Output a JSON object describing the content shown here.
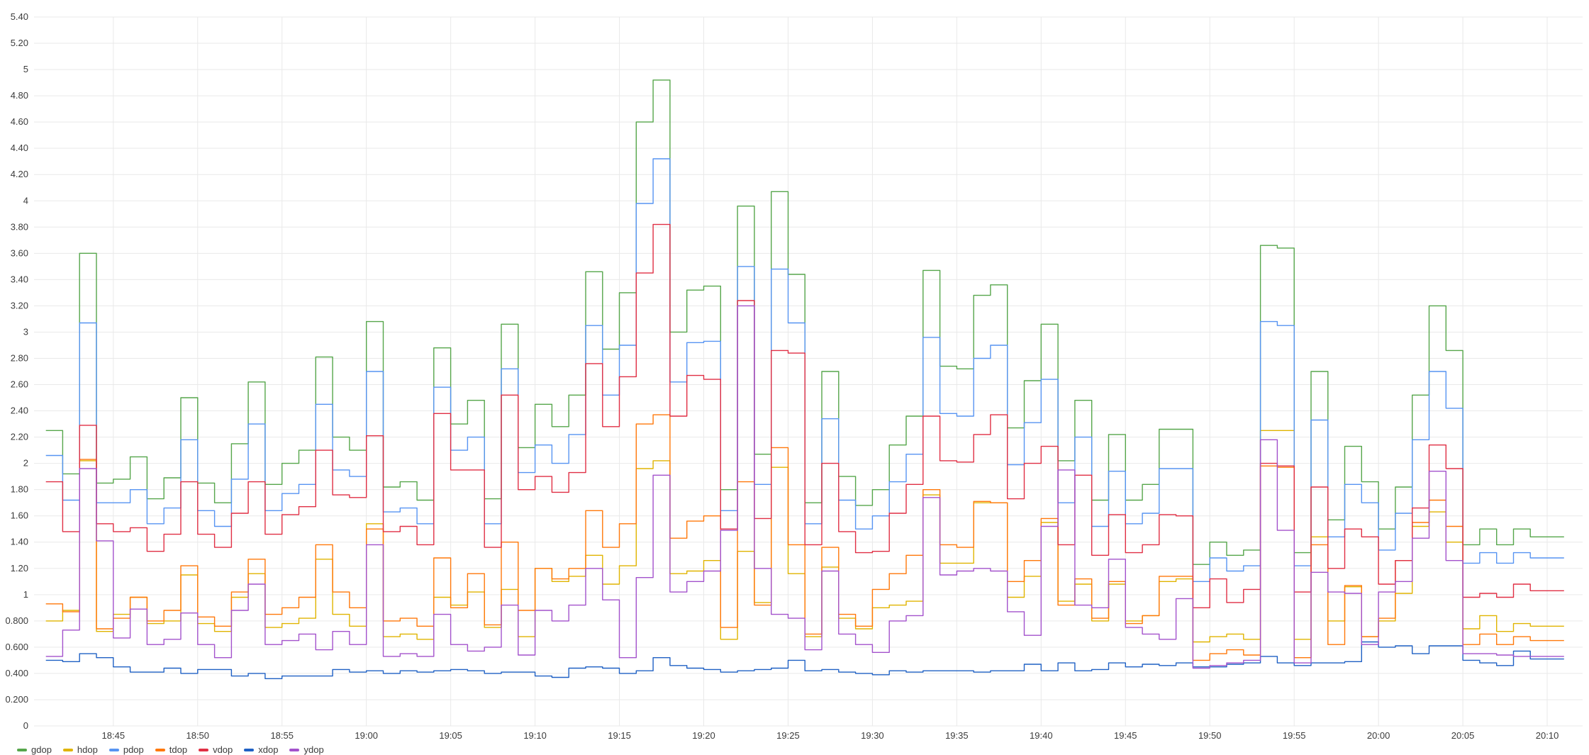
{
  "chart_data": {
    "type": "line",
    "title": "",
    "xlabel": "",
    "ylabel": "",
    "ylim": [
      0,
      5.4
    ],
    "y_ticks": [
      "0",
      "0.200",
      "0.400",
      "0.600",
      "0.800",
      "1",
      "1.20",
      "1.40",
      "1.60",
      "1.80",
      "2",
      "2.20",
      "2.40",
      "2.60",
      "2.80",
      "3",
      "3.20",
      "3.40",
      "3.60",
      "3.80",
      "4",
      "4.20",
      "4.40",
      "4.60",
      "4.80",
      "5",
      "5.20",
      "5.40"
    ],
    "x_ticks": [
      "18:45",
      "18:50",
      "18:55",
      "19:00",
      "19:05",
      "19:10",
      "19:15",
      "19:20",
      "19:25",
      "19:30",
      "19:35",
      "19:40",
      "19:45",
      "19:50",
      "19:55",
      "20:00",
      "20:05",
      "20:10"
    ],
    "x_time": [
      "18:41",
      "18:42",
      "18:43",
      "18:44",
      "18:45",
      "18:46",
      "18:47",
      "18:48",
      "18:49",
      "18:50",
      "18:51",
      "18:52",
      "18:53",
      "18:54",
      "18:55",
      "18:56",
      "18:57",
      "18:58",
      "18:59",
      "19:00",
      "19:01",
      "19:02",
      "19:03",
      "19:04",
      "19:05",
      "19:06",
      "19:07",
      "19:08",
      "19:09",
      "19:10",
      "19:11",
      "19:12",
      "19:13",
      "19:14",
      "19:15",
      "19:16",
      "19:17",
      "19:18",
      "19:19",
      "19:20",
      "19:21",
      "19:22",
      "19:23",
      "19:24",
      "19:25",
      "19:26",
      "19:27",
      "19:28",
      "19:29",
      "19:30",
      "19:31",
      "19:32",
      "19:33",
      "19:34",
      "19:35",
      "19:36",
      "19:37",
      "19:38",
      "19:39",
      "19:40",
      "19:41",
      "19:42",
      "19:43",
      "19:44",
      "19:45",
      "19:46",
      "19:47",
      "19:48",
      "19:49",
      "19:50",
      "19:51",
      "19:52",
      "19:53",
      "19:54",
      "19:55",
      "19:56",
      "19:57",
      "19:58",
      "19:59",
      "20:00",
      "20:01",
      "20:02",
      "20:03",
      "20:04",
      "20:05",
      "20:06",
      "20:07",
      "20:08",
      "20:09",
      "20:10",
      "20:11"
    ],
    "grid": true,
    "legend_position": "bottom-left",
    "series": [
      {
        "name": "gdop",
        "color": "#56A64B",
        "values": [
          2.25,
          1.92,
          3.6,
          1.85,
          1.88,
          2.05,
          1.73,
          1.89,
          2.5,
          1.85,
          1.7,
          2.15,
          2.62,
          1.84,
          2.0,
          2.1,
          2.81,
          2.2,
          2.1,
          3.08,
          1.82,
          1.86,
          1.72,
          2.88,
          2.3,
          2.48,
          1.73,
          3.06,
          2.12,
          2.45,
          2.28,
          2.52,
          3.46,
          2.87,
          3.3,
          4.6,
          4.92,
          3.0,
          3.32,
          3.35,
          1.8,
          3.96,
          2.07,
          4.07,
          3.44,
          1.7,
          2.7,
          1.9,
          1.68,
          1.8,
          2.14,
          2.36,
          3.47,
          2.74,
          2.72,
          3.28,
          3.36,
          2.27,
          2.63,
          3.06,
          2.02,
          2.48,
          1.72,
          2.22,
          1.72,
          1.84,
          2.26,
          2.26,
          1.23,
          1.4,
          1.3,
          1.34,
          3.66,
          3.64,
          1.32,
          2.7,
          1.57,
          2.13,
          1.86,
          1.5,
          1.82,
          2.52,
          3.2,
          2.86,
          1.38,
          1.5,
          1.38,
          1.5,
          1.44,
          1.44
        ]
      },
      {
        "name": "hdop",
        "color": "#E0B400",
        "values": [
          0.8,
          0.88,
          2.02,
          0.72,
          0.85,
          0.98,
          0.78,
          0.8,
          1.15,
          0.78,
          0.72,
          0.98,
          1.16,
          0.75,
          0.78,
          0.82,
          1.27,
          0.85,
          0.76,
          1.54,
          0.68,
          0.7,
          0.66,
          0.98,
          0.92,
          1.02,
          0.75,
          1.04,
          0.68,
          1.2,
          1.1,
          1.14,
          1.3,
          1.08,
          1.22,
          1.96,
          2.02,
          1.16,
          1.18,
          1.26,
          0.66,
          1.33,
          0.94,
          1.97,
          1.16,
          0.68,
          1.21,
          0.82,
          0.74,
          0.9,
          0.92,
          0.95,
          1.76,
          1.24,
          1.24,
          1.7,
          1.7,
          0.98,
          1.14,
          1.55,
          0.95,
          1.08,
          0.8,
          1.08,
          0.8,
          0.84,
          1.1,
          1.12,
          0.64,
          0.68,
          0.7,
          0.66,
          2.25,
          2.25,
          0.66,
          1.44,
          0.8,
          1.06,
          0.68,
          0.8,
          1.01,
          1.52,
          1.63,
          1.4,
          0.74,
          0.84,
          0.72,
          0.78,
          0.76,
          0.76
        ]
      },
      {
        "name": "pdop",
        "color": "#5794F2",
        "values": [
          2.06,
          1.72,
          3.07,
          1.7,
          1.7,
          1.8,
          1.54,
          1.66,
          2.18,
          1.64,
          1.52,
          1.88,
          2.3,
          1.64,
          1.77,
          1.84,
          2.45,
          1.95,
          1.9,
          2.7,
          1.63,
          1.66,
          1.54,
          2.58,
          2.1,
          2.2,
          1.54,
          2.72,
          1.93,
          2.14,
          2.0,
          2.22,
          3.05,
          2.52,
          2.9,
          3.98,
          4.32,
          2.62,
          2.92,
          2.93,
          1.64,
          3.5,
          1.84,
          3.48,
          3.07,
          1.54,
          2.34,
          1.72,
          1.5,
          1.6,
          1.86,
          2.07,
          2.96,
          2.38,
          2.36,
          2.8,
          2.9,
          1.99,
          2.31,
          2.64,
          1.7,
          2.2,
          1.52,
          1.94,
          1.54,
          1.62,
          1.96,
          1.96,
          1.1,
          1.28,
          1.18,
          1.22,
          3.08,
          3.05,
          1.22,
          2.33,
          1.44,
          1.84,
          1.7,
          1.34,
          1.62,
          2.18,
          2.7,
          2.42,
          1.24,
          1.32,
          1.24,
          1.32,
          1.28,
          1.28
        ]
      },
      {
        "name": "tdop",
        "color": "#FF780A",
        "values": [
          0.93,
          0.87,
          2.03,
          0.74,
          0.82,
          0.98,
          0.8,
          0.88,
          1.22,
          0.83,
          0.76,
          1.02,
          1.27,
          0.85,
          0.9,
          0.98,
          1.38,
          1.02,
          0.9,
          1.5,
          0.8,
          0.82,
          0.76,
          1.28,
          0.9,
          1.16,
          0.77,
          1.4,
          0.88,
          1.2,
          1.12,
          1.2,
          1.64,
          1.36,
          1.54,
          2.3,
          2.37,
          1.43,
          1.56,
          1.6,
          0.75,
          1.86,
          0.92,
          2.12,
          1.38,
          0.7,
          1.36,
          0.85,
          0.76,
          1.04,
          1.16,
          1.3,
          1.8,
          1.38,
          1.36,
          1.71,
          1.7,
          1.1,
          1.26,
          1.58,
          0.92,
          1.12,
          0.82,
          1.1,
          0.78,
          0.84,
          1.14,
          1.14,
          0.5,
          0.55,
          0.58,
          0.54,
          1.98,
          1.97,
          0.52,
          1.38,
          0.62,
          1.07,
          0.68,
          0.82,
          1.26,
          1.55,
          1.72,
          1.52,
          0.62,
          0.7,
          0.62,
          0.68,
          0.65,
          0.65
        ]
      },
      {
        "name": "vdop",
        "color": "#E02F44",
        "values": [
          1.86,
          1.48,
          2.29,
          1.54,
          1.48,
          1.51,
          1.33,
          1.46,
          1.86,
          1.46,
          1.36,
          1.62,
          1.86,
          1.46,
          1.61,
          1.67,
          2.1,
          1.76,
          1.74,
          2.21,
          1.48,
          1.52,
          1.38,
          2.38,
          1.95,
          1.95,
          1.36,
          2.52,
          1.8,
          1.9,
          1.78,
          1.93,
          2.76,
          2.28,
          2.66,
          3.45,
          3.82,
          2.36,
          2.67,
          2.64,
          1.5,
          3.24,
          1.58,
          2.86,
          2.84,
          1.38,
          2.0,
          1.48,
          1.32,
          1.33,
          1.62,
          1.84,
          2.36,
          2.02,
          2.01,
          2.22,
          2.37,
          1.73,
          2.0,
          2.13,
          1.38,
          1.91,
          1.3,
          1.61,
          1.32,
          1.38,
          1.61,
          1.6,
          0.9,
          1.12,
          0.94,
          1.04,
          2.0,
          1.98,
          1.02,
          1.82,
          1.2,
          1.5,
          1.44,
          1.08,
          1.26,
          1.66,
          2.14,
          1.96,
          0.98,
          1.01,
          0.98,
          1.08,
          1.03,
          1.03
        ]
      },
      {
        "name": "xdop",
        "color": "#1F60C4",
        "values": [
          0.5,
          0.49,
          0.55,
          0.52,
          0.45,
          0.41,
          0.41,
          0.44,
          0.4,
          0.43,
          0.43,
          0.38,
          0.4,
          0.36,
          0.38,
          0.38,
          0.38,
          0.43,
          0.41,
          0.42,
          0.4,
          0.42,
          0.41,
          0.42,
          0.43,
          0.42,
          0.4,
          0.41,
          0.41,
          0.38,
          0.37,
          0.44,
          0.45,
          0.44,
          0.4,
          0.42,
          0.52,
          0.46,
          0.44,
          0.43,
          0.41,
          0.42,
          0.43,
          0.44,
          0.5,
          0.42,
          0.43,
          0.41,
          0.4,
          0.39,
          0.42,
          0.41,
          0.42,
          0.42,
          0.42,
          0.41,
          0.42,
          0.42,
          0.47,
          0.42,
          0.48,
          0.42,
          0.43,
          0.48,
          0.45,
          0.47,
          0.46,
          0.48,
          0.45,
          0.45,
          0.47,
          0.48,
          0.53,
          0.48,
          0.46,
          0.48,
          0.48,
          0.49,
          0.64,
          0.6,
          0.61,
          0.55,
          0.61,
          0.61,
          0.5,
          0.48,
          0.46,
          0.57,
          0.51,
          0.51
        ]
      },
      {
        "name": "ydop",
        "color": "#A352CC",
        "values": [
          0.53,
          0.73,
          1.96,
          1.41,
          0.67,
          0.89,
          0.62,
          0.66,
          0.86,
          0.62,
          0.52,
          0.88,
          1.08,
          0.62,
          0.65,
          0.7,
          0.58,
          0.72,
          0.62,
          1.38,
          0.53,
          0.55,
          0.53,
          0.85,
          0.62,
          0.57,
          0.6,
          0.92,
          0.54,
          0.88,
          0.8,
          0.92,
          1.2,
          0.96,
          0.52,
          1.13,
          1.91,
          1.02,
          1.1,
          1.18,
          1.49,
          3.2,
          1.2,
          0.85,
          0.82,
          0.58,
          1.18,
          0.7,
          0.62,
          0.56,
          0.8,
          0.84,
          1.74,
          1.15,
          1.18,
          1.2,
          1.18,
          0.87,
          0.69,
          1.52,
          1.95,
          0.92,
          0.9,
          1.27,
          0.75,
          0.7,
          0.66,
          0.97,
          0.44,
          0.46,
          0.48,
          0.5,
          2.18,
          1.49,
          0.48,
          1.17,
          1.02,
          1.01,
          0.62,
          1.02,
          1.1,
          1.43,
          1.94,
          1.26,
          0.55,
          0.55,
          0.54,
          0.53,
          0.53,
          0.53
        ]
      }
    ]
  }
}
